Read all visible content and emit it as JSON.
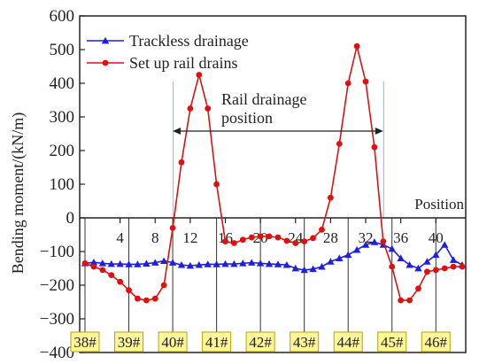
{
  "chart_data": {
    "type": "line",
    "title": "",
    "xlabel": "Position",
    "ylabel": "Bending moment/(kN/m)",
    "xlim": [
      0,
      43
    ],
    "ylim": [
      -400,
      600
    ],
    "yticks": [
      -400,
      -300,
      -200,
      -100,
      0,
      100,
      200,
      300,
      400,
      500,
      600
    ],
    "xticks": [
      4,
      8,
      12,
      16,
      20,
      24,
      28,
      32,
      36,
      40
    ],
    "legend_position": "top-left",
    "annotation": {
      "line1": "Rail drainage",
      "line2": "position",
      "span": [
        10,
        34
      ]
    },
    "stations": [
      {
        "label": "38#",
        "x": 0
      },
      {
        "label": "39#",
        "x": 5
      },
      {
        "label": "40#",
        "x": 10
      },
      {
        "label": "41#",
        "x": 15
      },
      {
        "label": "42#",
        "x": 20
      },
      {
        "label": "43#",
        "x": 25
      },
      {
        "label": "44#",
        "x": 30
      },
      {
        "label": "45#",
        "x": 35
      },
      {
        "label": "46#",
        "x": 40
      }
    ],
    "series": [
      {
        "name": "Trackless drainage",
        "color": "#1f1fe0",
        "marker": "triangle",
        "x": [
          0,
          1,
          2,
          3,
          4,
          5,
          6,
          7,
          8,
          9,
          10,
          11,
          12,
          13,
          14,
          15,
          16,
          17,
          18,
          19,
          20,
          21,
          22,
          23,
          24,
          25,
          26,
          27,
          28,
          29,
          30,
          31,
          32,
          33,
          34,
          35,
          36,
          37,
          38,
          39,
          40,
          41,
          42,
          43
        ],
        "y": [
          -135,
          -132,
          -135,
          -137,
          -137,
          -138,
          -138,
          -136,
          -133,
          -128,
          -133,
          -140,
          -142,
          -140,
          -138,
          -138,
          -137,
          -137,
          -135,
          -133,
          -135,
          -137,
          -138,
          -140,
          -150,
          -155,
          -152,
          -145,
          -130,
          -120,
          -110,
          -95,
          -80,
          -72,
          -80,
          -92,
          -120,
          -140,
          -150,
          -130,
          -110,
          -80,
          -125,
          -140
        ]
      },
      {
        "name": "Set up rail drains",
        "color": "#e01010",
        "marker": "circle",
        "x": [
          0,
          1,
          2,
          3,
          4,
          5,
          6,
          7,
          8,
          9,
          10,
          11,
          12,
          13,
          14,
          15,
          16,
          17,
          18,
          19,
          20,
          21,
          22,
          23,
          24,
          25,
          26,
          27,
          28,
          29,
          30,
          31,
          32,
          33,
          34,
          35,
          36,
          37,
          38,
          39,
          40,
          41,
          42,
          43
        ],
        "y": [
          -135,
          -145,
          -155,
          -170,
          -190,
          -215,
          -240,
          -245,
          -240,
          -200,
          -30,
          165,
          325,
          425,
          325,
          100,
          -70,
          -75,
          -65,
          -58,
          -55,
          -55,
          -58,
          -68,
          -75,
          -70,
          -60,
          -35,
          60,
          220,
          400,
          510,
          405,
          210,
          -70,
          -145,
          -245,
          -245,
          -210,
          -160,
          -155,
          -150,
          -145,
          -145
        ]
      }
    ]
  }
}
